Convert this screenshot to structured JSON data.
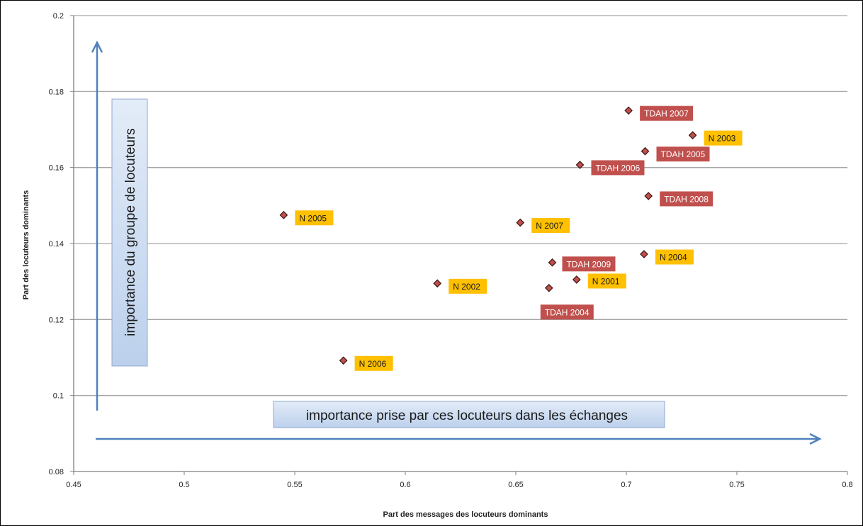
{
  "chart_data": {
    "type": "scatter",
    "xlabel": "Part des messages des locuteurs dominants",
    "ylabel": "Part des locuteurs dominants",
    "xlim": [
      0.45,
      0.8
    ],
    "ylim": [
      0.08,
      0.2
    ],
    "x_ticks": [
      0.45,
      0.5,
      0.55,
      0.6,
      0.65,
      0.7,
      0.75,
      0.8
    ],
    "y_ticks": [
      0.08,
      0.1,
      0.12,
      0.14,
      0.16,
      0.18,
      0.2
    ],
    "x_tick_labels": [
      "0.45",
      "0.5",
      "0.55",
      "0.6",
      "0.65",
      "0.7",
      "0.75",
      "0.8"
    ],
    "y_tick_labels": [
      "0.08",
      "0.1",
      "0.12",
      "0.14",
      "0.16",
      "0.18",
      "0.2"
    ],
    "grid": "horizontal",
    "legend": "none",
    "marker_color": "#c0504d",
    "label_colors": {
      "TDAH": "#c0504d",
      "N": "#ffc000"
    },
    "points": [
      {
        "label": "N 2005",
        "group": "N",
        "x": 0.545,
        "y": 0.1475
      },
      {
        "label": "N 2006",
        "group": "N",
        "x": 0.572,
        "y": 0.1092
      },
      {
        "label": "N 2002",
        "group": "N",
        "x": 0.6145,
        "y": 0.1295
      },
      {
        "label": "N 2007",
        "group": "N",
        "x": 0.652,
        "y": 0.1455
      },
      {
        "label": "TDAH 2004",
        "group": "TDAH",
        "x": 0.665,
        "y": 0.1283
      },
      {
        "label": "TDAH 2009",
        "group": "TDAH",
        "x": 0.6665,
        "y": 0.135
      },
      {
        "label": "N 2001",
        "group": "N",
        "x": 0.6775,
        "y": 0.1305
      },
      {
        "label": "TDAH 2006",
        "group": "TDAH",
        "x": 0.679,
        "y": 0.1607
      },
      {
        "label": "TDAH 2007",
        "group": "TDAH",
        "x": 0.701,
        "y": 0.175
      },
      {
        "label": "N 2004",
        "group": "N",
        "x": 0.708,
        "y": 0.1372
      },
      {
        "label": "TDAH 2005",
        "group": "TDAH",
        "x": 0.7085,
        "y": 0.1643
      },
      {
        "label": "TDAH 2008",
        "group": "TDAH",
        "x": 0.71,
        "y": 0.1525
      },
      {
        "label": "N 2003",
        "group": "N",
        "x": 0.73,
        "y": 0.1685
      }
    ],
    "annotations": {
      "vertical": "importance du groupe de locuteurs",
      "horizontal": "importance prise par ces locuteurs dans les échanges"
    }
  }
}
